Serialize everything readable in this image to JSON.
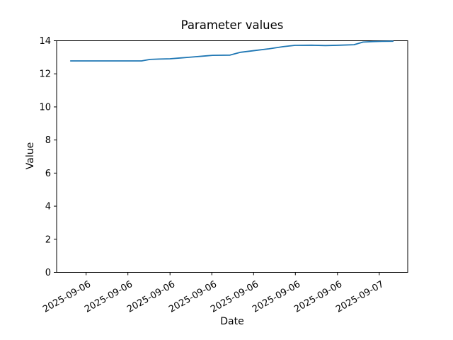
{
  "figure": {
    "background": "#ffffff",
    "text_color": "#000000",
    "spine_color": "#000000"
  },
  "chart_data": {
    "type": "line",
    "title": "Parameter values",
    "xlabel": "Date",
    "ylabel": "Value",
    "ylim": [
      0,
      14
    ],
    "y_ticks": [
      0,
      2,
      4,
      6,
      8,
      10,
      12,
      14
    ],
    "x_tick_labels": [
      "2025-09-06",
      "2025-09-06",
      "2025-09-06",
      "2025-09-06",
      "2025-09-06",
      "2025-09-06",
      "2025-09-06",
      "2025-09-07"
    ],
    "x_tick_positions": [
      0.084,
      0.203,
      0.323,
      0.442,
      0.561,
      0.68,
      0.8,
      0.919
    ],
    "x_tick_rotation_deg": 30,
    "grid": false,
    "legend": "none",
    "series": [
      {
        "name": "parameter-values-line",
        "color": "#1f77b4",
        "line_width": 1.8,
        "points": [
          [
            0.04,
            12.78
          ],
          [
            0.121,
            12.78
          ],
          [
            0.202,
            12.78
          ],
          [
            0.242,
            12.78
          ],
          [
            0.266,
            12.87
          ],
          [
            0.292,
            12.89
          ],
          [
            0.323,
            12.91
          ],
          [
            0.353,
            12.96
          ],
          [
            0.383,
            13.01
          ],
          [
            0.427,
            13.09
          ],
          [
            0.444,
            13.12
          ],
          [
            0.494,
            13.13
          ],
          [
            0.524,
            13.3
          ],
          [
            0.565,
            13.41
          ],
          [
            0.605,
            13.51
          ],
          [
            0.645,
            13.64
          ],
          [
            0.679,
            13.72
          ],
          [
            0.726,
            13.73
          ],
          [
            0.766,
            13.71
          ],
          [
            0.806,
            13.73
          ],
          [
            0.847,
            13.76
          ],
          [
            0.873,
            13.92
          ],
          [
            0.901,
            13.95
          ],
          [
            0.927,
            13.96
          ],
          [
            0.958,
            13.97
          ]
        ]
      }
    ]
  }
}
